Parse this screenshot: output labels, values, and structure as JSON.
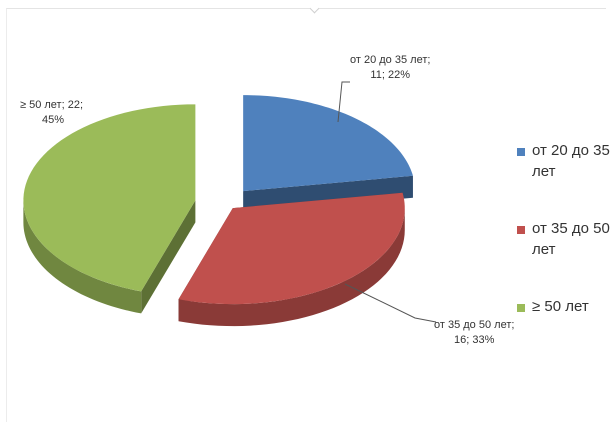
{
  "chart_data": {
    "type": "pie",
    "style": "3d-exploded",
    "slices": [
      {
        "label": "от 20 до 35 лет",
        "value": 11,
        "percent": 22,
        "color": "#4F81BD",
        "data_label": [
          "от 20 до 35 лет;",
          "11; 22%"
        ]
      },
      {
        "label": "от 35 до 50 лет",
        "value": 16,
        "percent": 33,
        "color": "#C0504D",
        "data_label": [
          "от 35 до 50 лет;",
          "16; 33%"
        ]
      },
      {
        "label": "≥ 50 лет",
        "value": 22,
        "percent": 45,
        "color": "#9BBB59",
        "data_label": [
          "≥ 50 лет; 22;",
          "45%"
        ]
      }
    ],
    "legend": {
      "position": "right",
      "items": [
        "от 20 до 35 лет",
        "от 35 до 50 лет",
        "≥ 50 лет"
      ]
    }
  }
}
